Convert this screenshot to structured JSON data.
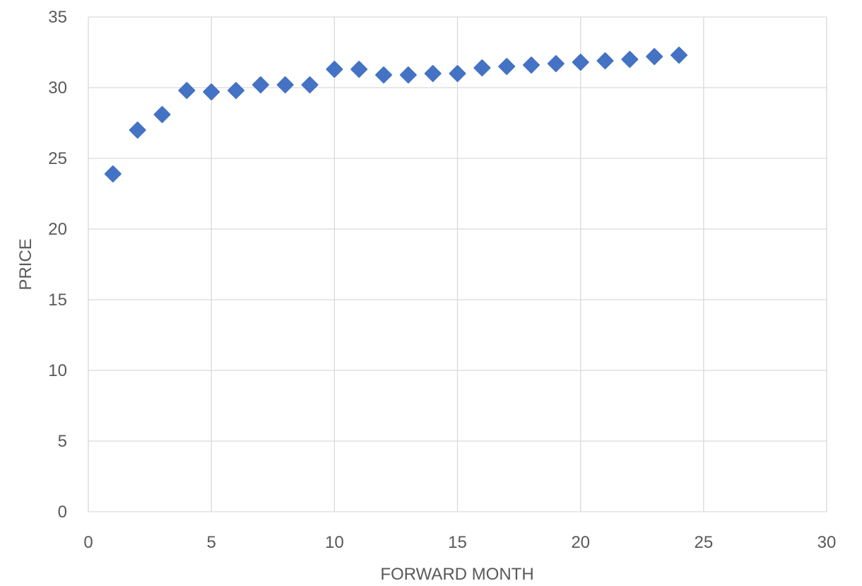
{
  "chart_data": {
    "type": "scatter",
    "title": "",
    "xlabel": "FORWARD MONTH",
    "ylabel": "PRICE",
    "xlim": [
      0,
      30
    ],
    "ylim": [
      0,
      35
    ],
    "x_ticks": [
      0,
      5,
      10,
      15,
      20,
      25,
      30
    ],
    "y_ticks": [
      0,
      5,
      10,
      15,
      20,
      25,
      30,
      35
    ],
    "grid": true,
    "legend": "none",
    "marker": "diamond",
    "series_color": "#4472C4",
    "series": [
      {
        "x": [
          1,
          2,
          3,
          4,
          5,
          6,
          7,
          8,
          9,
          10,
          11,
          12,
          13,
          14,
          15,
          16,
          17,
          18,
          19,
          20,
          21,
          22,
          23,
          24
        ],
        "values": [
          23.9,
          27.0,
          28.1,
          29.8,
          29.7,
          29.8,
          30.2,
          30.2,
          30.2,
          31.3,
          31.3,
          30.9,
          30.9,
          31.0,
          31.0,
          31.4,
          31.5,
          31.6,
          31.7,
          31.8,
          31.9,
          32.0,
          32.2,
          32.3
        ]
      }
    ]
  }
}
